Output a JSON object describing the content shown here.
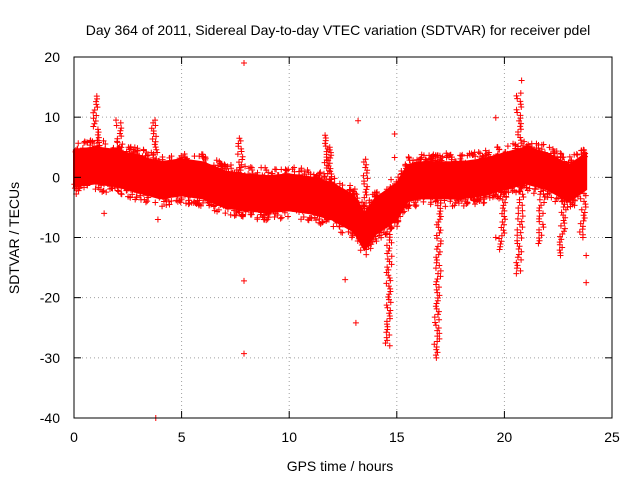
{
  "chart_data": {
    "type": "scatter",
    "title": "Day 364 of 2011, Sidereal Day-to-day VTEC variation (SDTVAR) for receiver pdel",
    "xlabel": "GPS time / hours",
    "ylabel": "SDTVAR / TECUs",
    "xlim": [
      0,
      25
    ],
    "ylim": [
      -40,
      20
    ],
    "xticks": [
      0,
      5,
      10,
      15,
      20,
      25
    ],
    "yticks": [
      -40,
      -30,
      -20,
      -10,
      0,
      10,
      20
    ],
    "grid": true,
    "marker": "+",
    "color": "#ff0000",
    "series": [
      {
        "name": "SDTVAR",
        "band_centerline": [
          [
            0,
            1.5
          ],
          [
            1,
            2.0
          ],
          [
            2,
            1.5
          ],
          [
            3,
            0.5
          ],
          [
            4,
            -0.5
          ],
          [
            5,
            0.0
          ],
          [
            6,
            -0.5
          ],
          [
            7,
            -2.0
          ],
          [
            8,
            -2.5
          ],
          [
            9,
            -2.8
          ],
          [
            10,
            -2.5
          ],
          [
            11,
            -3.0
          ],
          [
            12,
            -4.0
          ],
          [
            13,
            -6.0
          ],
          [
            13.5,
            -9.0
          ],
          [
            14,
            -6.5
          ],
          [
            15,
            -4.0
          ],
          [
            15.5,
            -1.0
          ],
          [
            16,
            -0.5
          ],
          [
            17,
            -0.5
          ],
          [
            18,
            -0.5
          ],
          [
            19,
            0.0
          ],
          [
            20,
            1.0
          ],
          [
            21,
            2.0
          ],
          [
            22,
            1.0
          ],
          [
            23,
            -1.0
          ],
          [
            23.8,
            1.0
          ]
        ],
        "band_halfwidth": 3.0,
        "spikes": [
          {
            "x": 1.1,
            "y_from": 2,
            "y_to": 13.5
          },
          {
            "x": 2.2,
            "y_from": 2,
            "y_to": 9.5
          },
          {
            "x": 3.8,
            "y_from": 1,
            "y_to": 9.5
          },
          {
            "x": 7.8,
            "y_from": -1,
            "y_to": 6.5
          },
          {
            "x": 11.8,
            "y_from": -3,
            "y_to": 7
          },
          {
            "x": 12.0,
            "y_from": -3,
            "y_to": 5
          },
          {
            "x": 13.7,
            "y_from": -12,
            "y_to": 3
          },
          {
            "x": 14.7,
            "y_from": -5,
            "y_to": -28
          },
          {
            "x": 17.0,
            "y_from": -2,
            "y_to": -30
          },
          {
            "x": 20.0,
            "y_from": -1,
            "y_to": -12
          },
          {
            "x": 20.8,
            "y_from": 2,
            "y_to": 14
          },
          {
            "x": 20.8,
            "y_from": -1,
            "y_to": -16
          },
          {
            "x": 21.8,
            "y_from": -1,
            "y_to": -11
          },
          {
            "x": 22.8,
            "y_from": 0,
            "y_to": -13
          },
          {
            "x": 23.7,
            "y_from": -4,
            "y_to": -10
          }
        ],
        "outliers": [
          [
            7.9,
            19.0
          ],
          [
            3.8,
            -40.0
          ],
          [
            7.9,
            -17.2
          ],
          [
            7.9,
            -29.3
          ],
          [
            13.2,
            9.4
          ],
          [
            13.1,
            -24.2
          ],
          [
            14.9,
            7.2
          ],
          [
            14.9,
            3.3
          ],
          [
            17.3,
            4.0
          ],
          [
            19.6,
            9.9
          ],
          [
            20.8,
            16.1
          ],
          [
            23.8,
            -17.5
          ],
          [
            23.8,
            -13.0
          ],
          [
            3.9,
            -7.0
          ],
          [
            1.4,
            -6.0
          ],
          [
            12.6,
            -17.0
          ],
          [
            19.6,
            -10.0
          ]
        ]
      }
    ]
  }
}
